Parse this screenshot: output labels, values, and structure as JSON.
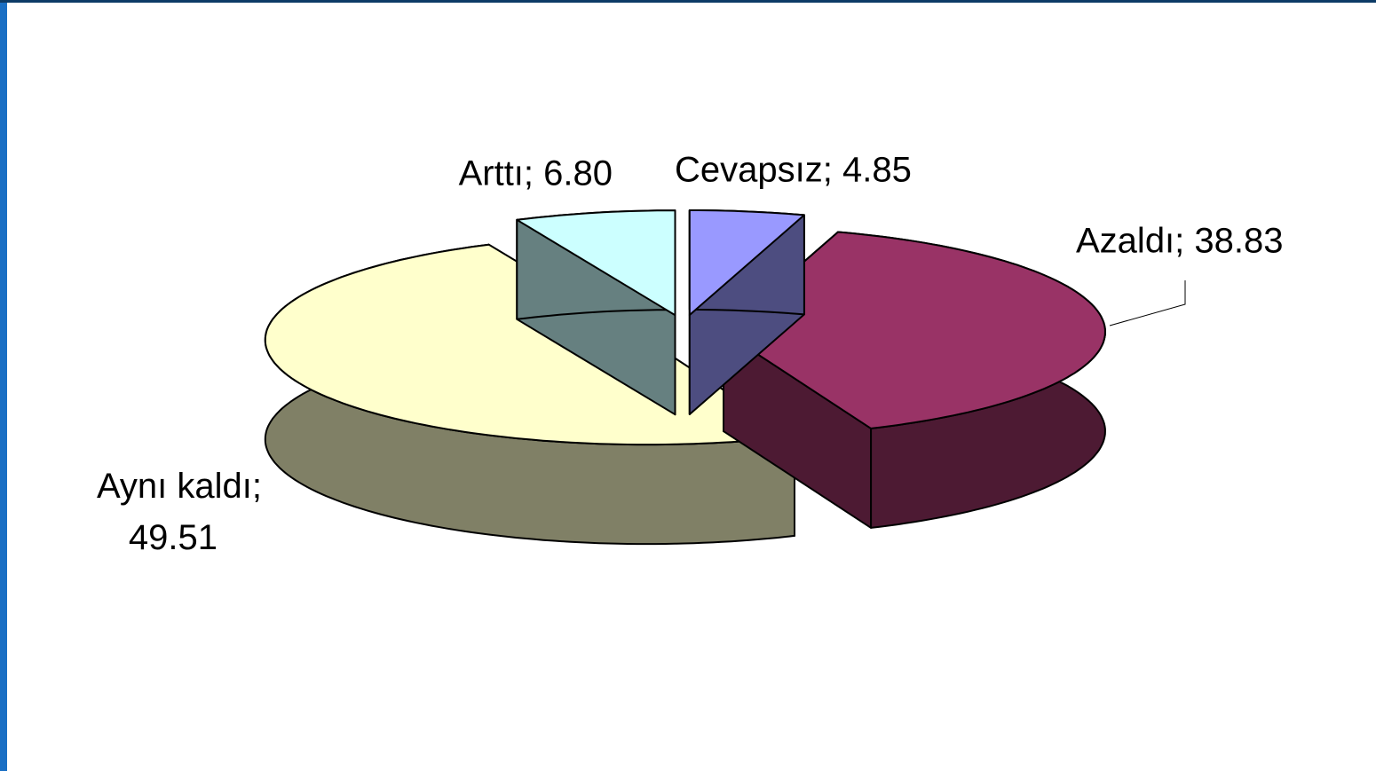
{
  "chart_data": {
    "type": "pie3d",
    "values": [
      4.85,
      38.83,
      49.51,
      6.8
    ],
    "value_labels": [
      "Cevapsız; 4.85",
      "Azaldı; 38.83",
      "Aynı kaldı; 49.51",
      "Arttı; 6.80"
    ],
    "colors": [
      "#9999ff",
      "#993366",
      "#ffffcc",
      "#ccffff"
    ],
    "side_colors": [
      "#4d4d80",
      "#4d1a33",
      "#808066",
      "#668080"
    ]
  }
}
